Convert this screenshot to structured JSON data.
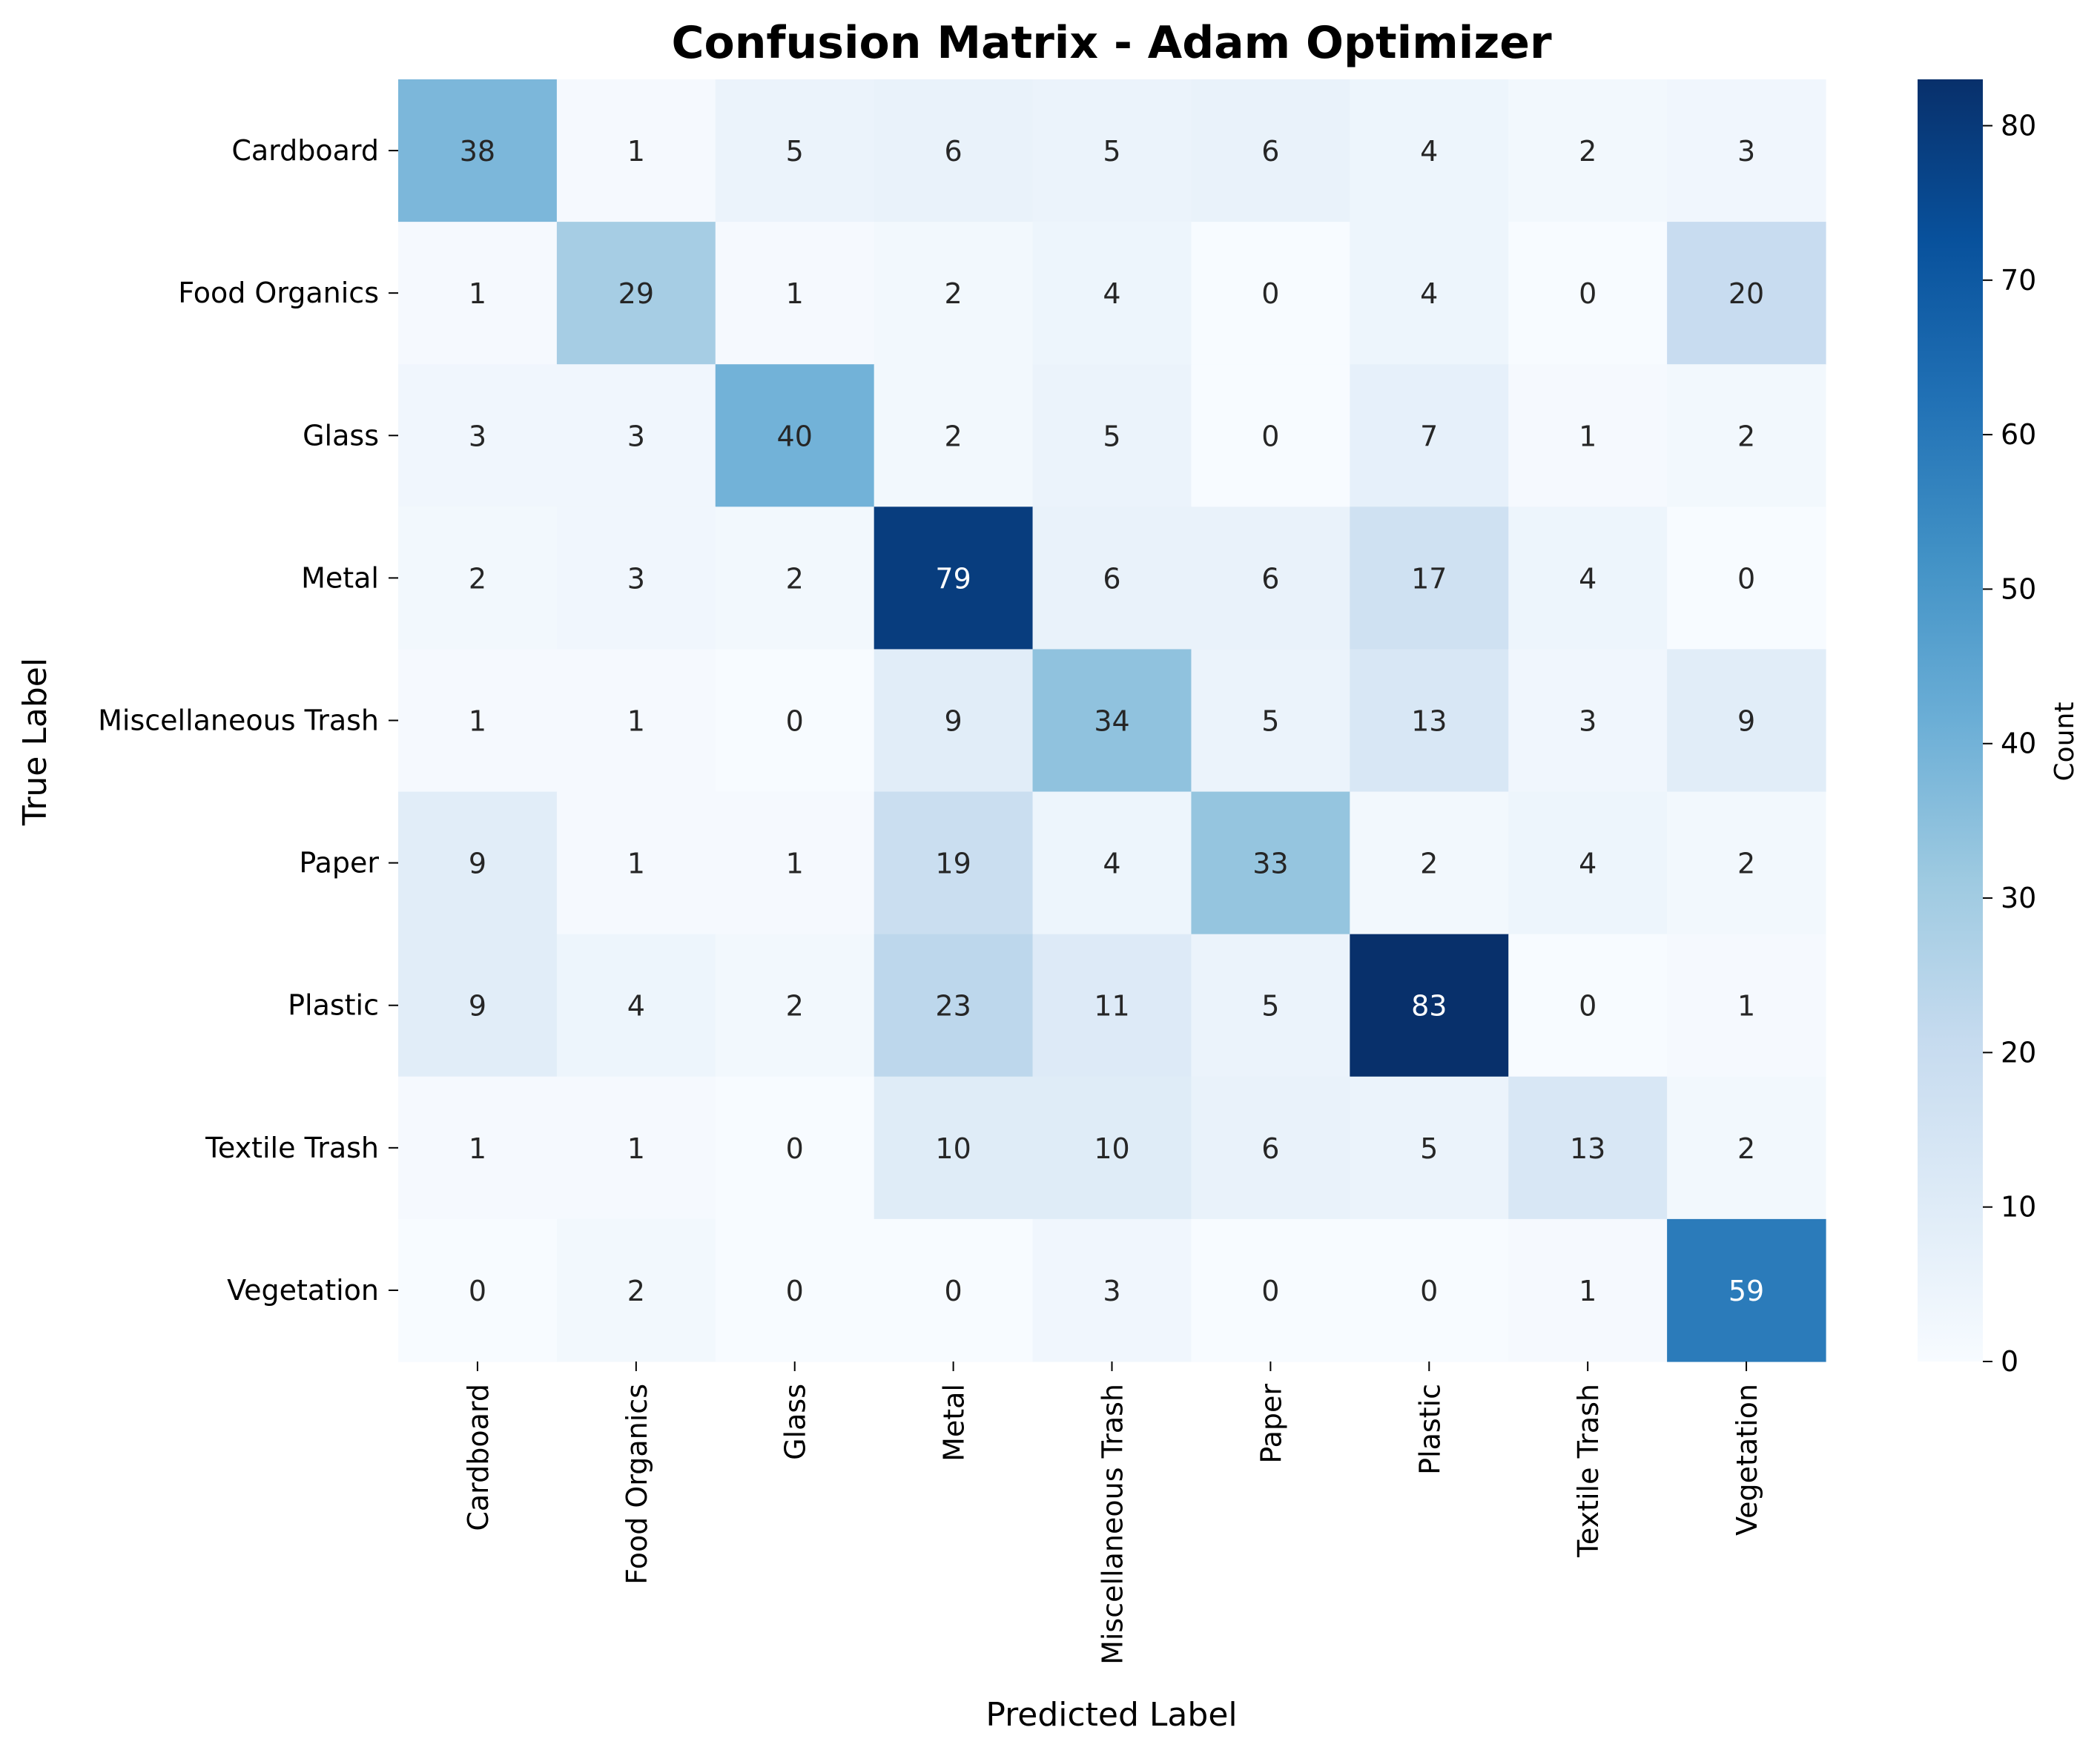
{
  "chart_data": {
    "type": "heatmap",
    "title": "Confusion Matrix - Adam Optimizer",
    "xlabel": "Predicted Label",
    "ylabel": "True Label",
    "colorbar_label": "Count",
    "x_categories": [
      "Cardboard",
      "Food Organics",
      "Glass",
      "Metal",
      "Miscellaneous Trash",
      "Paper",
      "Plastic",
      "Textile Trash",
      "Vegetation"
    ],
    "y_categories": [
      "Cardboard",
      "Food Organics",
      "Glass",
      "Metal",
      "Miscellaneous Trash",
      "Paper",
      "Plastic",
      "Textile Trash",
      "Vegetation"
    ],
    "values": [
      [
        38,
        1,
        5,
        6,
        5,
        6,
        4,
        2,
        3
      ],
      [
        1,
        29,
        1,
        2,
        4,
        0,
        4,
        0,
        20
      ],
      [
        3,
        3,
        40,
        2,
        5,
        0,
        7,
        1,
        2
      ],
      [
        2,
        3,
        2,
        79,
        6,
        6,
        17,
        4,
        0
      ],
      [
        1,
        1,
        0,
        9,
        34,
        5,
        13,
        3,
        9
      ],
      [
        9,
        1,
        1,
        19,
        4,
        33,
        2,
        4,
        2
      ],
      [
        9,
        4,
        2,
        23,
        11,
        5,
        83,
        0,
        1
      ],
      [
        1,
        1,
        0,
        10,
        10,
        6,
        5,
        13,
        2
      ],
      [
        0,
        2,
        0,
        0,
        3,
        0,
        0,
        1,
        59
      ]
    ],
    "colorbar_range": [
      0,
      83
    ],
    "colorbar_ticks": [
      0,
      10,
      20,
      30,
      40,
      50,
      60,
      70,
      80
    ],
    "colormap": "Blues",
    "colormap_stops": [
      "#f7fbff",
      "#deebf7",
      "#c6dbef",
      "#9ecae1",
      "#6baed6",
      "#4292c6",
      "#2171b5",
      "#08519c",
      "#08306b"
    ],
    "grid": false
  }
}
